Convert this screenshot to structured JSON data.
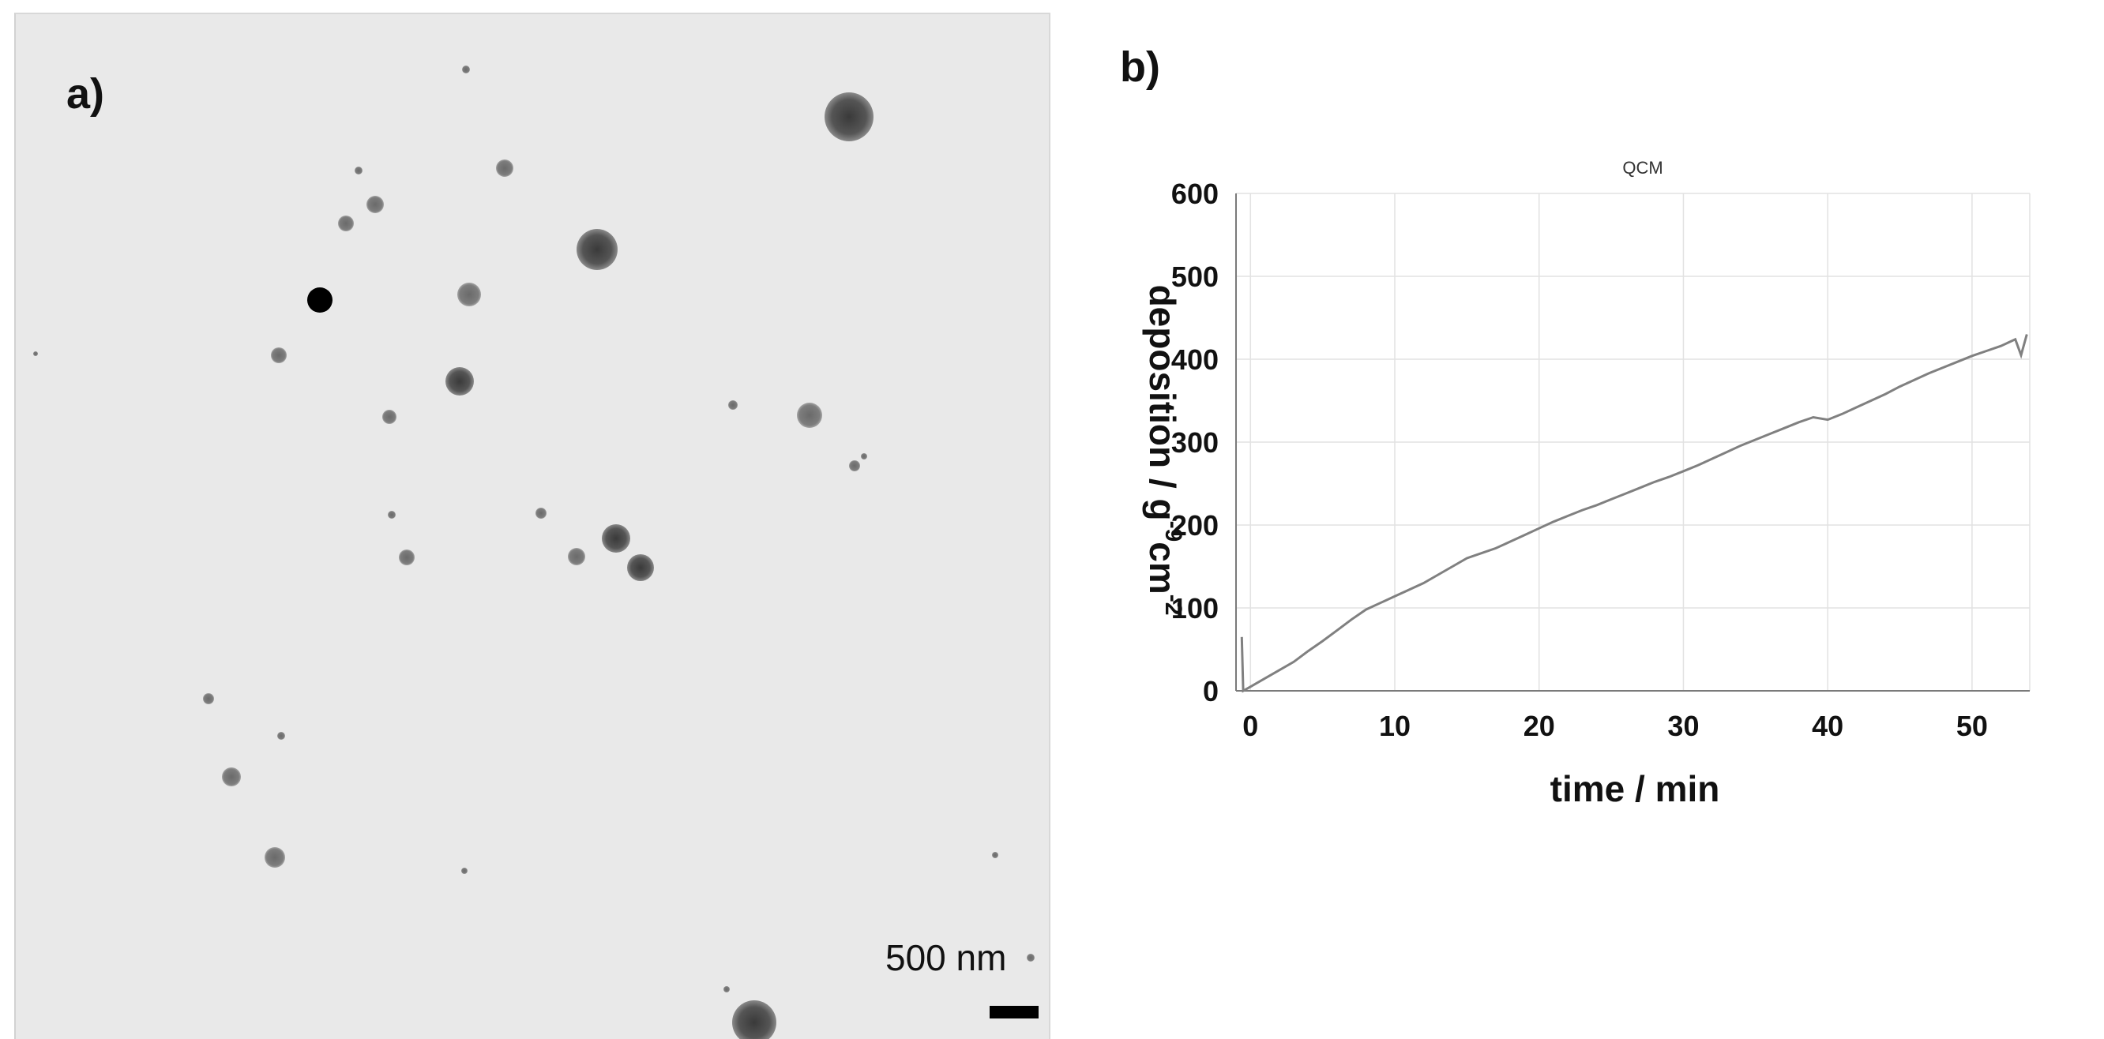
{
  "panel_a": {
    "label": "a)",
    "scale_bar_text": "500 nm"
  },
  "panel_b": {
    "label": "b)"
  },
  "chart_data": {
    "type": "line",
    "title": "QCM",
    "xlabel": "time / min",
    "ylabel_main": "deposition / g",
    "ylabel_sup1": "-9",
    "ylabel_mid": "cm",
    "ylabel_sup2": "-2",
    "xlim": [
      -1,
      54
    ],
    "ylim": [
      0,
      600
    ],
    "x_ticks": [
      0,
      10,
      20,
      30,
      40,
      50
    ],
    "y_ticks": [
      0,
      100,
      200,
      300,
      400,
      500,
      600
    ],
    "grid": true,
    "line_color": "#808080",
    "series": [
      {
        "x": [
          -0.6,
          -0.5,
          -0.3,
          0,
          1,
          2,
          3,
          4,
          5,
          6,
          7,
          8,
          9,
          10,
          11,
          12,
          13,
          14,
          15,
          16,
          17,
          18,
          19,
          20,
          21,
          22,
          23,
          24,
          25,
          26,
          27,
          28,
          29,
          30,
          31,
          32,
          33,
          34,
          35,
          36,
          37,
          38,
          39,
          40,
          41,
          42,
          43,
          44,
          45,
          46,
          47,
          48,
          49,
          50,
          51,
          52,
          53,
          53.4,
          53.8
        ],
        "y": [
          65,
          0,
          2,
          5,
          15,
          25,
          35,
          48,
          60,
          73,
          86,
          98,
          106,
          114,
          122,
          130,
          140,
          150,
          160,
          166,
          172,
          180,
          188,
          196,
          204,
          211,
          218,
          224,
          231,
          238,
          245,
          252,
          258,
          265,
          272,
          280,
          288,
          296,
          303,
          310,
          317,
          324,
          330,
          327,
          334,
          342,
          350,
          358,
          367,
          375,
          383,
          390,
          397,
          404,
          410,
          416,
          424,
          405,
          430
        ]
      }
    ]
  }
}
